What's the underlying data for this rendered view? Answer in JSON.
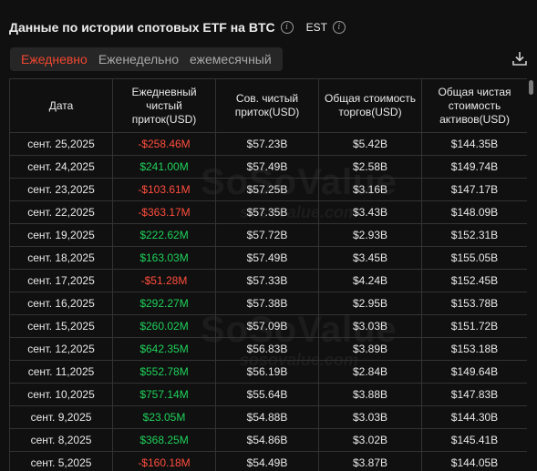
{
  "header": {
    "title": "Данные по истории спотовых ETF на BTC",
    "timezone": "EST"
  },
  "tabs": [
    {
      "label": "Ежедневно",
      "active": true
    },
    {
      "label": "Еженедельно",
      "active": false
    },
    {
      "label": "ежемесячный",
      "active": false
    }
  ],
  "table": {
    "columns": [
      "Дата",
      "Ежедневный чистый приток(USD)",
      "Сов. чистый приток(USD)",
      "Общая стоимость торгов(USD)",
      "Общая чистая стоимость активов(USD)"
    ],
    "rows": [
      [
        "сент. 25,2025",
        "-$258.46M",
        "$57.23B",
        "$5.42B",
        "$144.35B"
      ],
      [
        "сент. 24,2025",
        "$241.00M",
        "$57.49B",
        "$2.58B",
        "$149.74B"
      ],
      [
        "сент. 23,2025",
        "-$103.61M",
        "$57.25B",
        "$3.16B",
        "$147.17B"
      ],
      [
        "сент. 22,2025",
        "-$363.17M",
        "$57.35B",
        "$3.43B",
        "$148.09B"
      ],
      [
        "сент. 19,2025",
        "$222.62M",
        "$57.72B",
        "$2.93B",
        "$152.31B"
      ],
      [
        "сент. 18,2025",
        "$163.03M",
        "$57.49B",
        "$3.45B",
        "$155.05B"
      ],
      [
        "сент. 17,2025",
        "-$51.28M",
        "$57.33B",
        "$4.24B",
        "$152.45B"
      ],
      [
        "сент. 16,2025",
        "$292.27M",
        "$57.38B",
        "$2.95B",
        "$153.78B"
      ],
      [
        "сент. 15,2025",
        "$260.02M",
        "$57.09B",
        "$3.03B",
        "$151.72B"
      ],
      [
        "сент. 12,2025",
        "$642.35M",
        "$56.83B",
        "$3.89B",
        "$153.18B"
      ],
      [
        "сент. 11,2025",
        "$552.78M",
        "$56.19B",
        "$2.84B",
        "$149.64B"
      ],
      [
        "сент. 10,2025",
        "$757.14M",
        "$55.64B",
        "$3.88B",
        "$147.83B"
      ],
      [
        "сент. 9,2025",
        "$23.05M",
        "$54.88B",
        "$3.03B",
        "$144.30B"
      ],
      [
        "сент. 8,2025",
        "$368.25M",
        "$54.86B",
        "$3.02B",
        "$145.41B"
      ],
      [
        "сент. 5,2025",
        "-$160.18M",
        "$54.49B",
        "$3.87B",
        "$144.05B"
      ]
    ]
  },
  "watermark": {
    "brand": "SoSoValue",
    "domain": "sosovalue.com"
  },
  "colors": {
    "positive": "#1fd15a",
    "negative": "#ff4d3d",
    "active_tab": "#f0472f",
    "background": "#101010"
  }
}
